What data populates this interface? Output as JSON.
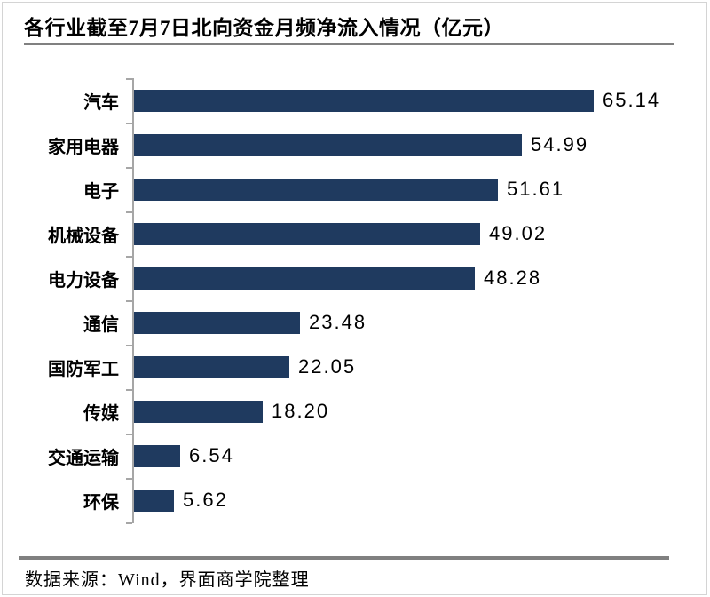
{
  "title": "各行业截至7月7日北向资金月频净流入情况（亿元）",
  "source": "数据来源：Wind，界面商学院整理",
  "colors": {
    "bar": "#1f3a5f",
    "rule": "#808080",
    "axis": "#a6a6a6",
    "frame_border": "#d4d4d4",
    "text": "#000000",
    "background": "#ffffff"
  },
  "chart_data": {
    "type": "bar",
    "orientation": "horizontal",
    "title": "各行业截至7月7日北向资金月频净流入情况（亿元）",
    "xlabel": "",
    "ylabel": "",
    "categories": [
      "汽车",
      "家用电器",
      "电子",
      "机械设备",
      "电力设备",
      "通信",
      "国防军工",
      "传媒",
      "交通运输",
      "环保"
    ],
    "values": [
      65.14,
      54.99,
      51.61,
      49.02,
      48.28,
      23.48,
      22.05,
      18.2,
      6.54,
      5.62
    ],
    "value_labels": [
      "65.14",
      "54.99",
      "51.61",
      "49.02",
      "48.28",
      "23.48",
      "22.05",
      "18.20",
      "6.54",
      "5.62"
    ],
    "xlim": [
      0,
      80
    ],
    "grid": false,
    "legend": false,
    "data_labels": true,
    "bar_color": "#1f3a5f"
  }
}
